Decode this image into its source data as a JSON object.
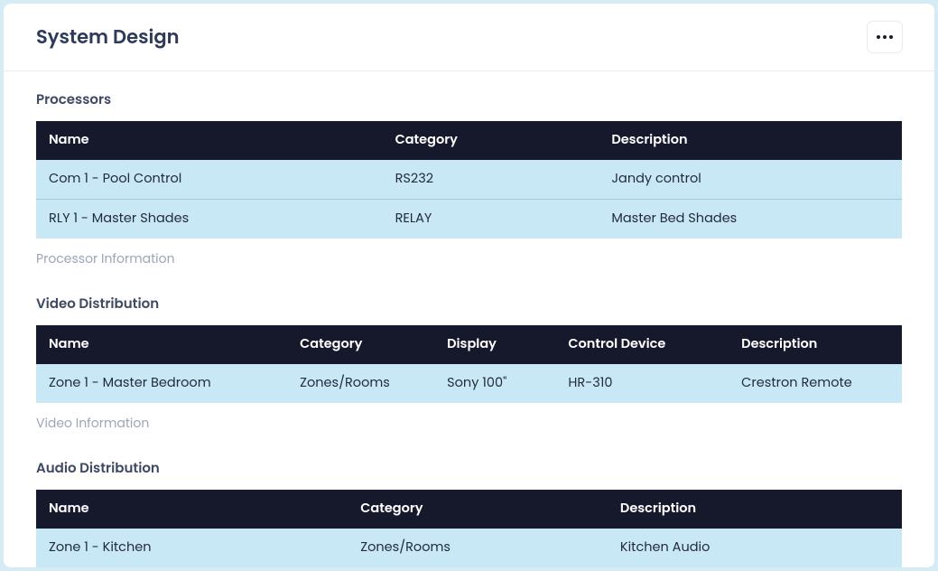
{
  "page": {
    "title": "System Design"
  },
  "colors": {
    "page_bg": "#d6ecf5",
    "card_bg": "#ffffff",
    "header_text": "#2e3a59",
    "table_header_bg": "#16192c",
    "table_header_text": "#ffffff",
    "row_bg": "#c9e8f5",
    "row_border": "#9fcbe0",
    "muted_text": "#9da6b7",
    "body_text": "#222b3f"
  },
  "sections": {
    "processors": {
      "title": "Processors",
      "columns": [
        "Name",
        "Category",
        "Description"
      ],
      "col_widths": [
        "40%",
        "25%",
        "35%"
      ],
      "rows": [
        [
          "Com 1 - Pool Control",
          "RS232",
          "Jandy control"
        ],
        [
          "RLY 1 - Master Shades",
          "RELAY",
          "Master Bed Shades"
        ]
      ],
      "info": "Processor Information"
    },
    "video": {
      "title": "Video Distribution",
      "columns": [
        "Name",
        "Category",
        "Display",
        "Control Device",
        "Description"
      ],
      "col_widths": [
        "29%",
        "17%",
        "14%",
        "20%",
        "20%"
      ],
      "rows": [
        [
          "Zone 1 - Master Bedroom",
          "Zones/Rooms",
          "Sony 100\"",
          "HR-310",
          "Crestron Remote"
        ]
      ],
      "info": "Video Information"
    },
    "audio": {
      "title": "Audio Distribution",
      "columns": [
        "Name",
        "Category",
        "Description"
      ],
      "col_widths": [
        "36%",
        "30%",
        "34%"
      ],
      "rows": [
        [
          "Zone 1 - Kitchen",
          "Zones/Rooms",
          "Kitchen Audio"
        ]
      ]
    }
  }
}
